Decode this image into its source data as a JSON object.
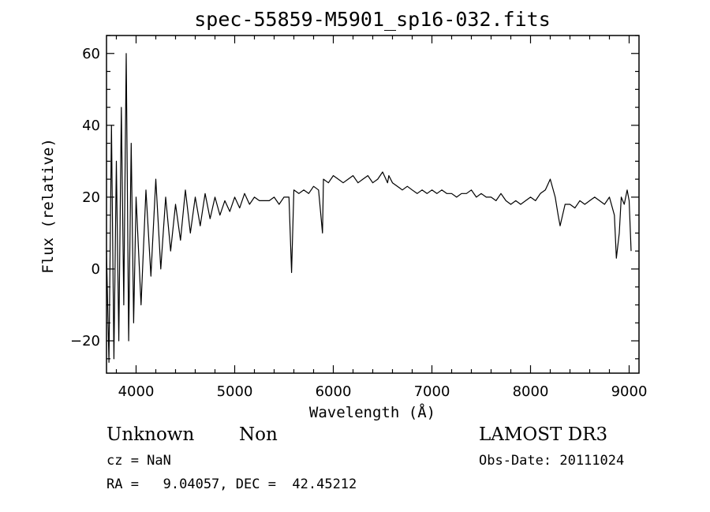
{
  "chart_data": {
    "type": "line",
    "title": "spec-55859-M5901_sp16-032.fits",
    "xlabel": "Wavelength (Å)",
    "ylabel": "Flux (relative)",
    "xlim": [
      3700,
      9100
    ],
    "ylim": [
      -29,
      65
    ],
    "x_ticks": [
      4000,
      5000,
      6000,
      7000,
      8000,
      9000
    ],
    "y_ticks": [
      -20,
      0,
      20,
      40,
      60
    ],
    "x_tick_labels": [
      "4000",
      "5000",
      "6000",
      "7000",
      "8000",
      "9000"
    ],
    "y_tick_labels": [
      "−20",
      "0",
      "20",
      "40",
      "60"
    ],
    "grid": false,
    "series": [
      {
        "x": [
          3700,
          3725,
          3750,
          3775,
          3800,
          3825,
          3850,
          3875,
          3900,
          3925,
          3950,
          3975,
          4000,
          4050,
          4100,
          4150,
          4200,
          4250,
          4300,
          4350,
          4400,
          4450,
          4500,
          4550,
          4600,
          4650,
          4700,
          4750,
          4800,
          4850,
          4900,
          4950,
          5000,
          5050,
          5100,
          5150,
          5200,
          5250,
          5300,
          5350,
          5400,
          5450,
          5500,
          5550,
          5577,
          5600,
          5650,
          5700,
          5750,
          5800,
          5850,
          5890,
          5900,
          5950,
          6000,
          6050,
          6100,
          6150,
          6200,
          6250,
          6300,
          6350,
          6400,
          6450,
          6500,
          6550,
          6563,
          6600,
          6650,
          6700,
          6750,
          6800,
          6850,
          6900,
          6950,
          7000,
          7050,
          7100,
          7150,
          7200,
          7250,
          7300,
          7350,
          7400,
          7450,
          7500,
          7550,
          7600,
          7650,
          7700,
          7750,
          7800,
          7850,
          7900,
          7950,
          8000,
          8050,
          8100,
          8150,
          8200,
          8250,
          8280,
          8300,
          8350,
          8400,
          8450,
          8500,
          8550,
          8600,
          8650,
          8700,
          8750,
          8800,
          8850,
          8870,
          8900,
          8920,
          8950,
          8980,
          9000,
          9020
        ],
        "y": [
          5,
          -26,
          40,
          -25,
          30,
          -20,
          45,
          -10,
          60,
          -20,
          35,
          -15,
          20,
          -10,
          22,
          -2,
          25,
          0,
          20,
          5,
          18,
          8,
          22,
          10,
          20,
          12,
          21,
          14,
          20,
          15,
          19,
          16,
          20,
          17,
          21,
          18,
          20,
          19,
          19,
          19,
          20,
          18,
          20,
          20,
          -1,
          22,
          21,
          22,
          21,
          23,
          22,
          10,
          25,
          24,
          26,
          25,
          24,
          25,
          26,
          24,
          25,
          26,
          24,
          25,
          27,
          24,
          26,
          24,
          23,
          22,
          23,
          22,
          21,
          22,
          21,
          22,
          21,
          22,
          21,
          21,
          20,
          21,
          21,
          22,
          20,
          21,
          20,
          20,
          19,
          21,
          19,
          18,
          19,
          18,
          19,
          20,
          19,
          21,
          22,
          25,
          20,
          15,
          12,
          18,
          18,
          17,
          19,
          18,
          19,
          20,
          19,
          18,
          20,
          15,
          3,
          10,
          20,
          18,
          22,
          19,
          5
        ]
      }
    ]
  },
  "info": {
    "object_class": "Unknown",
    "subclass": "Non",
    "survey": "LAMOST DR3",
    "redshift": "cz = NaN",
    "obs_date": "Obs-Date: 20111024",
    "coords": "RA =   9.04057, DEC =  42.45212"
  }
}
